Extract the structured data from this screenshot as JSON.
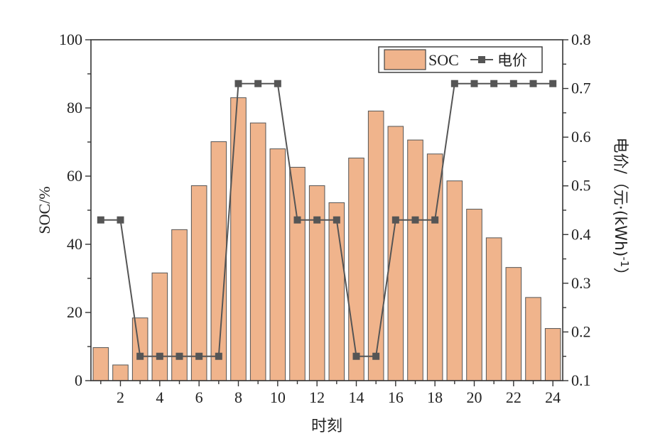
{
  "chart_data": {
    "type": "bar",
    "categories": [
      1,
      2,
      3,
      4,
      5,
      6,
      7,
      8,
      9,
      10,
      11,
      12,
      13,
      14,
      15,
      16,
      17,
      18,
      19,
      20,
      21,
      22,
      23,
      24
    ],
    "x_tick_labels": [
      "2",
      "4",
      "6",
      "8",
      "10",
      "12",
      "14",
      "16",
      "18",
      "20",
      "22",
      "24"
    ],
    "x_ticks": [
      2,
      4,
      6,
      8,
      10,
      12,
      14,
      16,
      18,
      20,
      22,
      24
    ],
    "xlabel": "时刻",
    "ylabel": "SOC/%",
    "ylim": [
      0,
      100
    ],
    "y_ticks": [
      0,
      20,
      40,
      60,
      80,
      100
    ],
    "y_tick_labels": [
      "0",
      "20",
      "40",
      "60",
      "80",
      "100"
    ],
    "y2label": "电价/（元·(kWh)",
    "y2label_sup": "-1",
    "y2label_close": "）",
    "y2lim": [
      0.1,
      0.8
    ],
    "y2_ticks": [
      0.1,
      0.2,
      0.3,
      0.4,
      0.5,
      0.6,
      0.7,
      0.8
    ],
    "y2_tick_labels": [
      "0.1",
      "0.2",
      "0.3",
      "0.4",
      "0.5",
      "0.6",
      "0.7",
      "0.8"
    ],
    "series": [
      {
        "name": "SOC",
        "type": "bar",
        "axis": "left",
        "color": "#F0B48C",
        "values": [
          9.7,
          4.6,
          18.4,
          31.6,
          44.3,
          57.2,
          70.1,
          83.0,
          75.6,
          68.0,
          62.6,
          57.2,
          52.2,
          65.3,
          79.1,
          74.6,
          70.6,
          66.5,
          58.6,
          50.3,
          41.9,
          33.2,
          24.4,
          15.3
        ]
      },
      {
        "name": "电价",
        "type": "line",
        "axis": "right",
        "color": "#555555",
        "values": [
          0.43,
          0.43,
          0.15,
          0.15,
          0.15,
          0.15,
          0.15,
          0.71,
          0.71,
          0.71,
          0.43,
          0.43,
          0.43,
          0.15,
          0.15,
          0.43,
          0.43,
          0.43,
          0.71,
          0.71,
          0.71,
          0.71,
          0.71,
          0.71
        ]
      }
    ],
    "legend": {
      "position": "top-right",
      "entries": [
        "SOC",
        "电价"
      ]
    },
    "grid": false
  }
}
